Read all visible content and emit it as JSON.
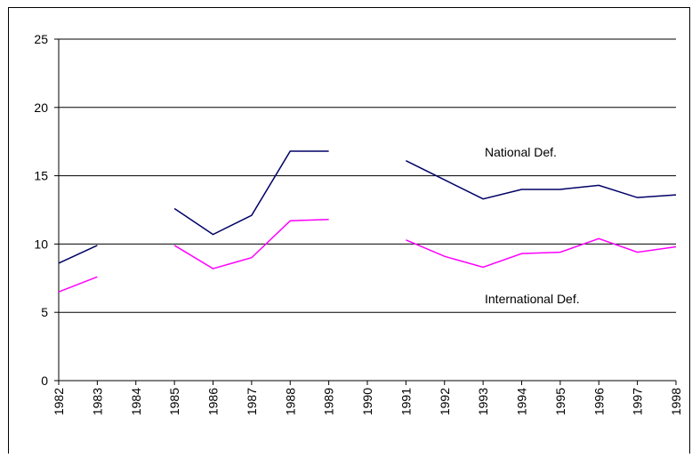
{
  "chart_data": {
    "type": "line",
    "categories": [
      "1982",
      "1983",
      "1984",
      "1985",
      "1986",
      "1987",
      "1988",
      "1989",
      "1990",
      "1991",
      "1992",
      "1993",
      "1994",
      "1995",
      "1996",
      "1997",
      "1998"
    ],
    "series": [
      {
        "name": "National Def.",
        "color": "#000066",
        "values": [
          8.6,
          9.9,
          null,
          12.6,
          10.7,
          12.1,
          16.8,
          16.8,
          null,
          16.1,
          14.7,
          13.3,
          14.0,
          14.0,
          14.3,
          13.4,
          13.6
        ]
      },
      {
        "name": "International Def.",
        "color": "#ff00ff",
        "values": [
          6.5,
          7.6,
          null,
          9.9,
          8.2,
          9.0,
          11.7,
          11.8,
          null,
          10.3,
          9.1,
          8.3,
          9.3,
          9.4,
          10.4,
          9.4,
          9.8
        ]
      }
    ],
    "ylim": [
      0,
      25
    ],
    "yticks": [
      0,
      5,
      10,
      15,
      20,
      25
    ],
    "grid": true
  }
}
